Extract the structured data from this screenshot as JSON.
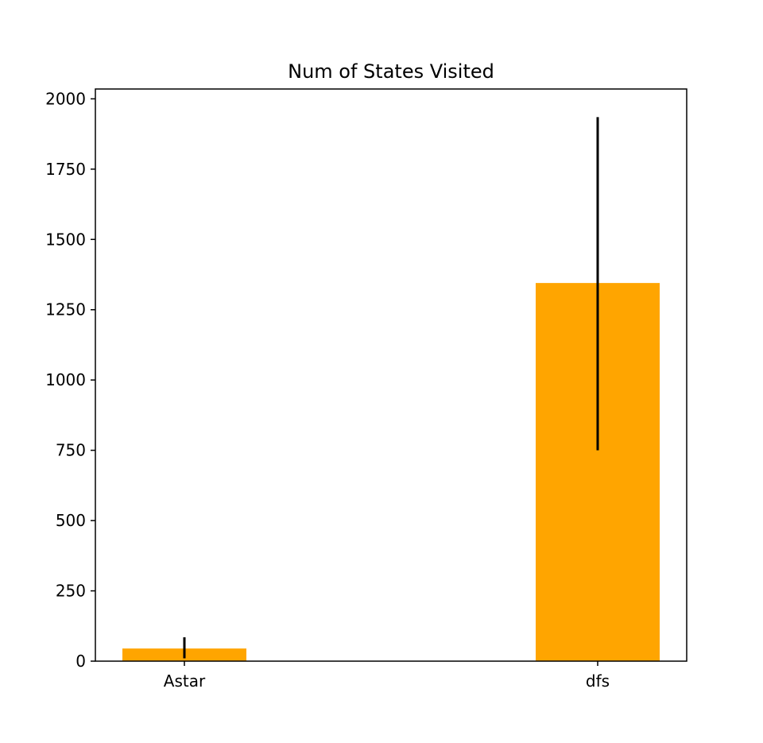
{
  "chart_data": {
    "type": "bar",
    "title": "Num of States Visited",
    "xlabel": "",
    "ylabel": "",
    "categories": [
      "Astar",
      "dfs"
    ],
    "values": [
      45,
      1345
    ],
    "error_low": [
      10,
      750
    ],
    "error_high": [
      85,
      1935
    ],
    "ylim": [
      0,
      2035
    ],
    "yticks": [
      0,
      250,
      500,
      750,
      1000,
      1250,
      1500,
      1750,
      2000
    ],
    "ytick_labels": [
      "0",
      "250",
      "500",
      "750",
      "1000",
      "1250",
      "1500",
      "1750",
      "2000"
    ],
    "bar_color": "#ffa500",
    "errorbar_color": "#000000",
    "grid": false,
    "legend": false
  }
}
